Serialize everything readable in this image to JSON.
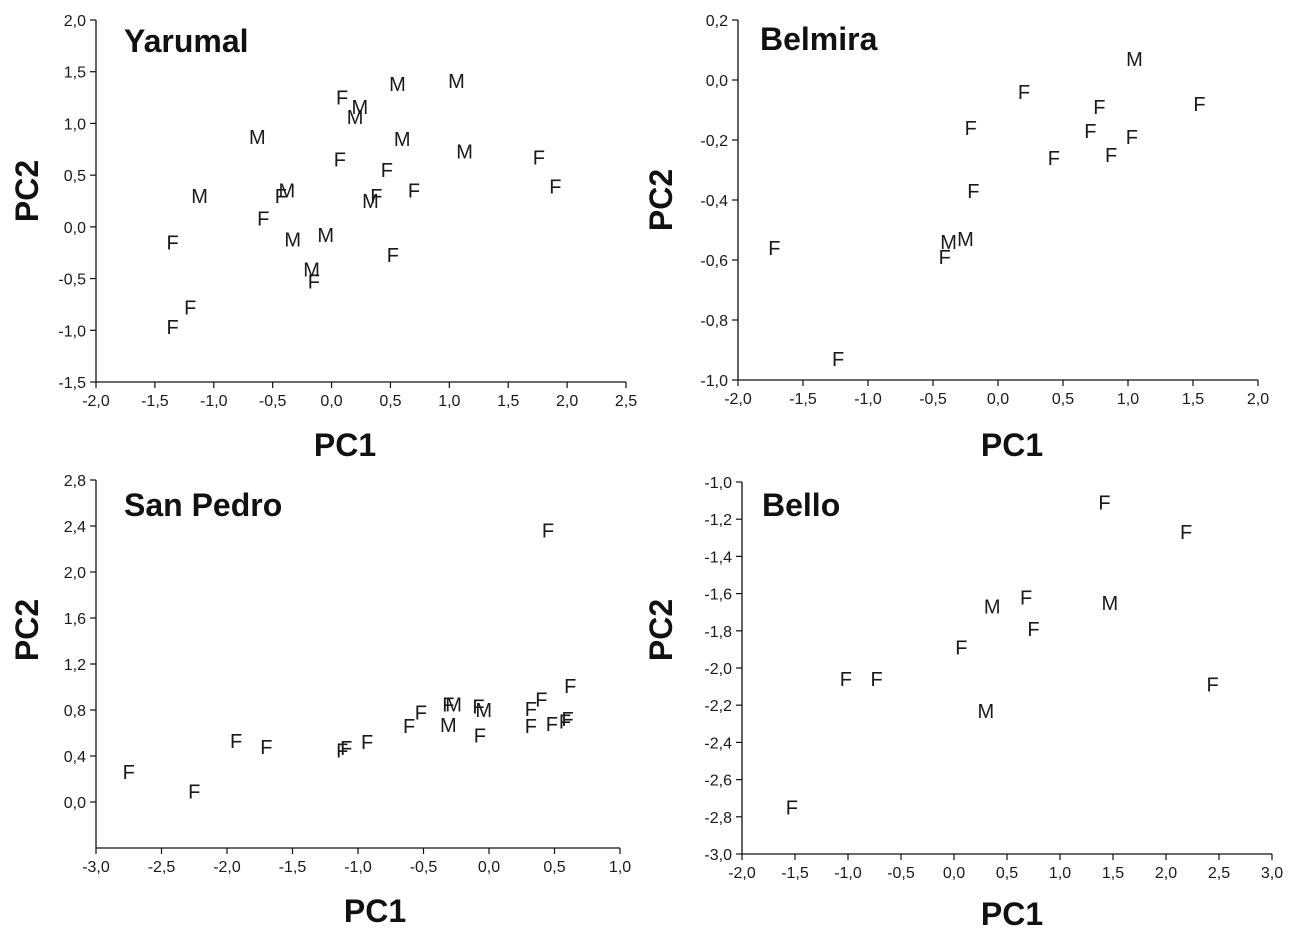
{
  "chart_data": [
    {
      "type": "scatter",
      "title": "Yarumal",
      "xlabel": "PC1",
      "ylabel": "PC2",
      "xlim": [
        -2.0,
        2.5
      ],
      "ylim": [
        -1.5,
        2.0
      ],
      "xticks": [
        "-2,0",
        "-1,5",
        "-1,0",
        "-0,5",
        "0,0",
        "0,5",
        "1,0",
        "1,5",
        "2,0",
        "2,5"
      ],
      "yticks": [
        "2,0",
        "1,5",
        "1,0",
        "0,5",
        "0,0",
        "-0,5",
        "-1,0",
        "-1,5"
      ],
      "points": [
        {
          "x": -1.35,
          "y": -0.15,
          "label": "F"
        },
        {
          "x": -1.35,
          "y": -0.97,
          "label": "F"
        },
        {
          "x": -1.2,
          "y": -0.78,
          "label": "F"
        },
        {
          "x": -1.12,
          "y": 0.3,
          "label": "M"
        },
        {
          "x": -0.63,
          "y": 0.87,
          "label": "M"
        },
        {
          "x": -0.58,
          "y": 0.08,
          "label": "F"
        },
        {
          "x": -0.43,
          "y": 0.3,
          "label": "F"
        },
        {
          "x": -0.38,
          "y": 0.35,
          "label": "M"
        },
        {
          "x": -0.33,
          "y": -0.12,
          "label": "M"
        },
        {
          "x": -0.05,
          "y": -0.08,
          "label": "M"
        },
        {
          "x": -0.17,
          "y": -0.41,
          "label": "M"
        },
        {
          "x": -0.15,
          "y": -0.53,
          "label": "F"
        },
        {
          "x": 0.07,
          "y": 0.65,
          "label": "F"
        },
        {
          "x": 0.09,
          "y": 1.25,
          "label": "F"
        },
        {
          "x": 0.24,
          "y": 1.16,
          "label": "M"
        },
        {
          "x": 0.2,
          "y": 1.06,
          "label": "M"
        },
        {
          "x": 0.33,
          "y": 0.25,
          "label": "M"
        },
        {
          "x": 0.38,
          "y": 0.3,
          "label": "F"
        },
        {
          "x": 0.47,
          "y": 0.55,
          "label": "F"
        },
        {
          "x": 0.56,
          "y": 1.38,
          "label": "M"
        },
        {
          "x": 0.6,
          "y": 0.85,
          "label": "M"
        },
        {
          "x": 0.52,
          "y": -0.27,
          "label": "F"
        },
        {
          "x": 0.7,
          "y": 0.35,
          "label": "F"
        },
        {
          "x": 1.06,
          "y": 1.41,
          "label": "M"
        },
        {
          "x": 1.13,
          "y": 0.73,
          "label": "M"
        },
        {
          "x": 1.76,
          "y": 0.67,
          "label": "F"
        },
        {
          "x": 1.9,
          "y": 0.39,
          "label": "F"
        }
      ]
    },
    {
      "type": "scatter",
      "title": "Belmira",
      "xlabel": "PC1",
      "ylabel": "PC2",
      "xlim": [
        -2.0,
        2.0
      ],
      "ylim": [
        -1.0,
        0.2
      ],
      "xticks": [
        "-2,0",
        "-1,5",
        "-1,0",
        "-0,5",
        "0,0",
        "0,5",
        "1,0",
        "1,5",
        "2,0"
      ],
      "yticks": [
        "0,2",
        "0,0",
        "-0,2",
        "-0,4",
        "-0,6",
        "-0,8",
        "-1,0"
      ],
      "points": [
        {
          "x": -1.72,
          "y": -0.56,
          "label": "F"
        },
        {
          "x": -1.23,
          "y": -0.93,
          "label": "F"
        },
        {
          "x": -0.41,
          "y": -0.59,
          "label": "F"
        },
        {
          "x": -0.38,
          "y": -0.54,
          "label": "M"
        },
        {
          "x": -0.25,
          "y": -0.53,
          "label": "M"
        },
        {
          "x": -0.19,
          "y": -0.37,
          "label": "F"
        },
        {
          "x": -0.21,
          "y": -0.16,
          "label": "F"
        },
        {
          "x": 0.2,
          "y": -0.04,
          "label": "F"
        },
        {
          "x": 0.43,
          "y": -0.26,
          "label": "F"
        },
        {
          "x": 0.71,
          "y": -0.17,
          "label": "F"
        },
        {
          "x": 0.78,
          "y": -0.09,
          "label": "F"
        },
        {
          "x": 0.87,
          "y": -0.25,
          "label": "F"
        },
        {
          "x": 1.03,
          "y": -0.19,
          "label": "F"
        },
        {
          "x": 1.05,
          "y": 0.07,
          "label": "M"
        },
        {
          "x": 1.55,
          "y": -0.08,
          "label": "F"
        }
      ]
    },
    {
      "type": "scatter",
      "title": "San Pedro",
      "xlabel": "PC1",
      "ylabel": "PC2",
      "xlim": [
        -3.0,
        1.0
      ],
      "ylim": [
        -0.4,
        2.8
      ],
      "xticks": [
        "-3,0",
        "-2,5",
        "-2,0",
        "-1,5",
        "-1,0",
        "-0,5",
        "0,0",
        "0,5",
        "1,0"
      ],
      "yticks": [
        "2,8",
        "2,4",
        "2,0",
        "1,6",
        "1,2",
        "0,8",
        "0,4",
        "0,0"
      ],
      "points": [
        {
          "x": -2.75,
          "y": 0.26,
          "label": "F"
        },
        {
          "x": -2.25,
          "y": 0.09,
          "label": "F"
        },
        {
          "x": -1.93,
          "y": 0.53,
          "label": "F"
        },
        {
          "x": -1.7,
          "y": 0.48,
          "label": "F"
        },
        {
          "x": -1.12,
          "y": 0.45,
          "label": "F"
        },
        {
          "x": -1.09,
          "y": 0.47,
          "label": "F"
        },
        {
          "x": -0.93,
          "y": 0.52,
          "label": "F"
        },
        {
          "x": -0.61,
          "y": 0.66,
          "label": "F"
        },
        {
          "x": -0.52,
          "y": 0.78,
          "label": "F"
        },
        {
          "x": -0.31,
          "y": 0.85,
          "label": "F"
        },
        {
          "x": -0.27,
          "y": 0.85,
          "label": "M"
        },
        {
          "x": -0.31,
          "y": 0.67,
          "label": "M"
        },
        {
          "x": -0.08,
          "y": 0.83,
          "label": "F"
        },
        {
          "x": -0.04,
          "y": 0.8,
          "label": "M"
        },
        {
          "x": -0.07,
          "y": 0.58,
          "label": "F"
        },
        {
          "x": 0.32,
          "y": 0.81,
          "label": "F"
        },
        {
          "x": 0.32,
          "y": 0.66,
          "label": "F"
        },
        {
          "x": 0.4,
          "y": 0.89,
          "label": "F"
        },
        {
          "x": 0.48,
          "y": 0.68,
          "label": "F"
        },
        {
          "x": 0.58,
          "y": 0.7,
          "label": "F"
        },
        {
          "x": 0.6,
          "y": 0.72,
          "label": "F"
        },
        {
          "x": 0.62,
          "y": 1.01,
          "label": "F"
        },
        {
          "x": 0.45,
          "y": 2.36,
          "label": "F"
        }
      ]
    },
    {
      "type": "scatter",
      "title": "Bello",
      "xlabel": "PC1",
      "ylabel": "PC2",
      "xlim": [
        -2.0,
        3.0
      ],
      "ylim": [
        -3.0,
        -1.0
      ],
      "xticks": [
        "-2,0",
        "-1,5",
        "-1,0",
        "-0,5",
        "0,0",
        "0,5",
        "1,0",
        "1,5",
        "2,0",
        "2,5",
        "3,0"
      ],
      "yticks": [
        "-1,0",
        "-1,2",
        "-1,4",
        "-1,6",
        "-1,8",
        "-2,0",
        "-2,2",
        "-2,4",
        "-2,6",
        "-2,8",
        "-3,0"
      ],
      "points": [
        {
          "x": -1.53,
          "y": -2.75,
          "label": "F"
        },
        {
          "x": -1.02,
          "y": -2.06,
          "label": "F"
        },
        {
          "x": -0.73,
          "y": -2.06,
          "label": "F"
        },
        {
          "x": 0.07,
          "y": -1.89,
          "label": "F"
        },
        {
          "x": 0.3,
          "y": -2.23,
          "label": "M"
        },
        {
          "x": 0.36,
          "y": -1.67,
          "label": "M"
        },
        {
          "x": 0.68,
          "y": -1.62,
          "label": "F"
        },
        {
          "x": 0.75,
          "y": -1.79,
          "label": "F"
        },
        {
          "x": 1.42,
          "y": -1.11,
          "label": "F"
        },
        {
          "x": 1.47,
          "y": -1.65,
          "label": "M"
        },
        {
          "x": 2.19,
          "y": -1.27,
          "label": "F"
        },
        {
          "x": 2.44,
          "y": -2.09,
          "label": "F"
        }
      ]
    }
  ]
}
